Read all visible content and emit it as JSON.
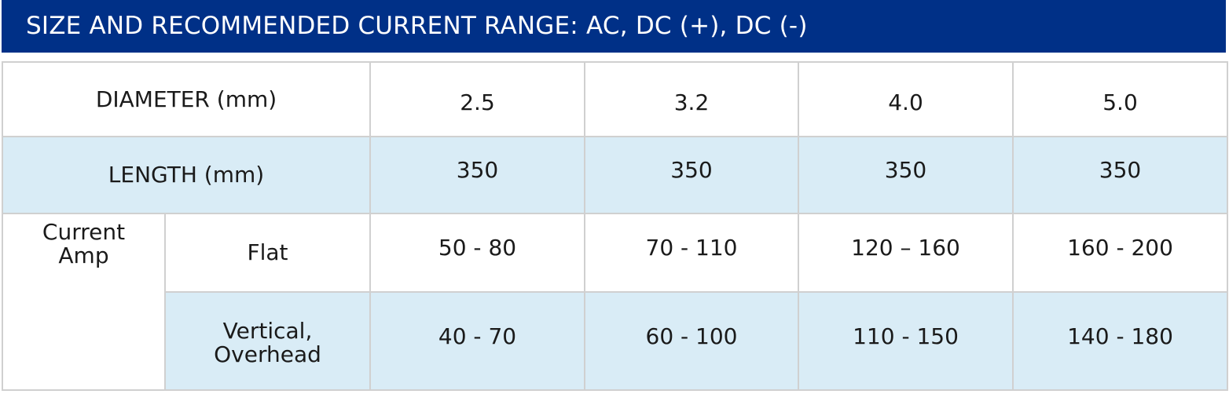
{
  "title": "SIZE AND RECOMMENDED CURRENT RANGE: AC, DC (+), DC (-)",
  "table": {
    "diameter": {
      "label": "DIAMETER (mm)",
      "values": [
        "2.5",
        "3.2",
        "4.0",
        "5.0"
      ]
    },
    "length": {
      "label": "LENGTH (mm)",
      "values": [
        "350",
        "350",
        "350",
        "350"
      ]
    },
    "current": {
      "group_label_line1": "Current",
      "group_label_line2": "Amp",
      "flat": {
        "label": "Flat",
        "values": [
          "50 - 80",
          "70 - 110",
          "120 – 160",
          "160 - 200"
        ]
      },
      "vertical": {
        "label_line1": "Vertical,",
        "label_line2": "Overhead",
        "values": [
          "40 - 70",
          "60 - 100",
          "110 - 150",
          "140 - 180"
        ]
      }
    }
  },
  "colors": {
    "header_bg": "#003087",
    "row_alt_bg": "#d9ecf6",
    "border": "#d0d0d0"
  }
}
